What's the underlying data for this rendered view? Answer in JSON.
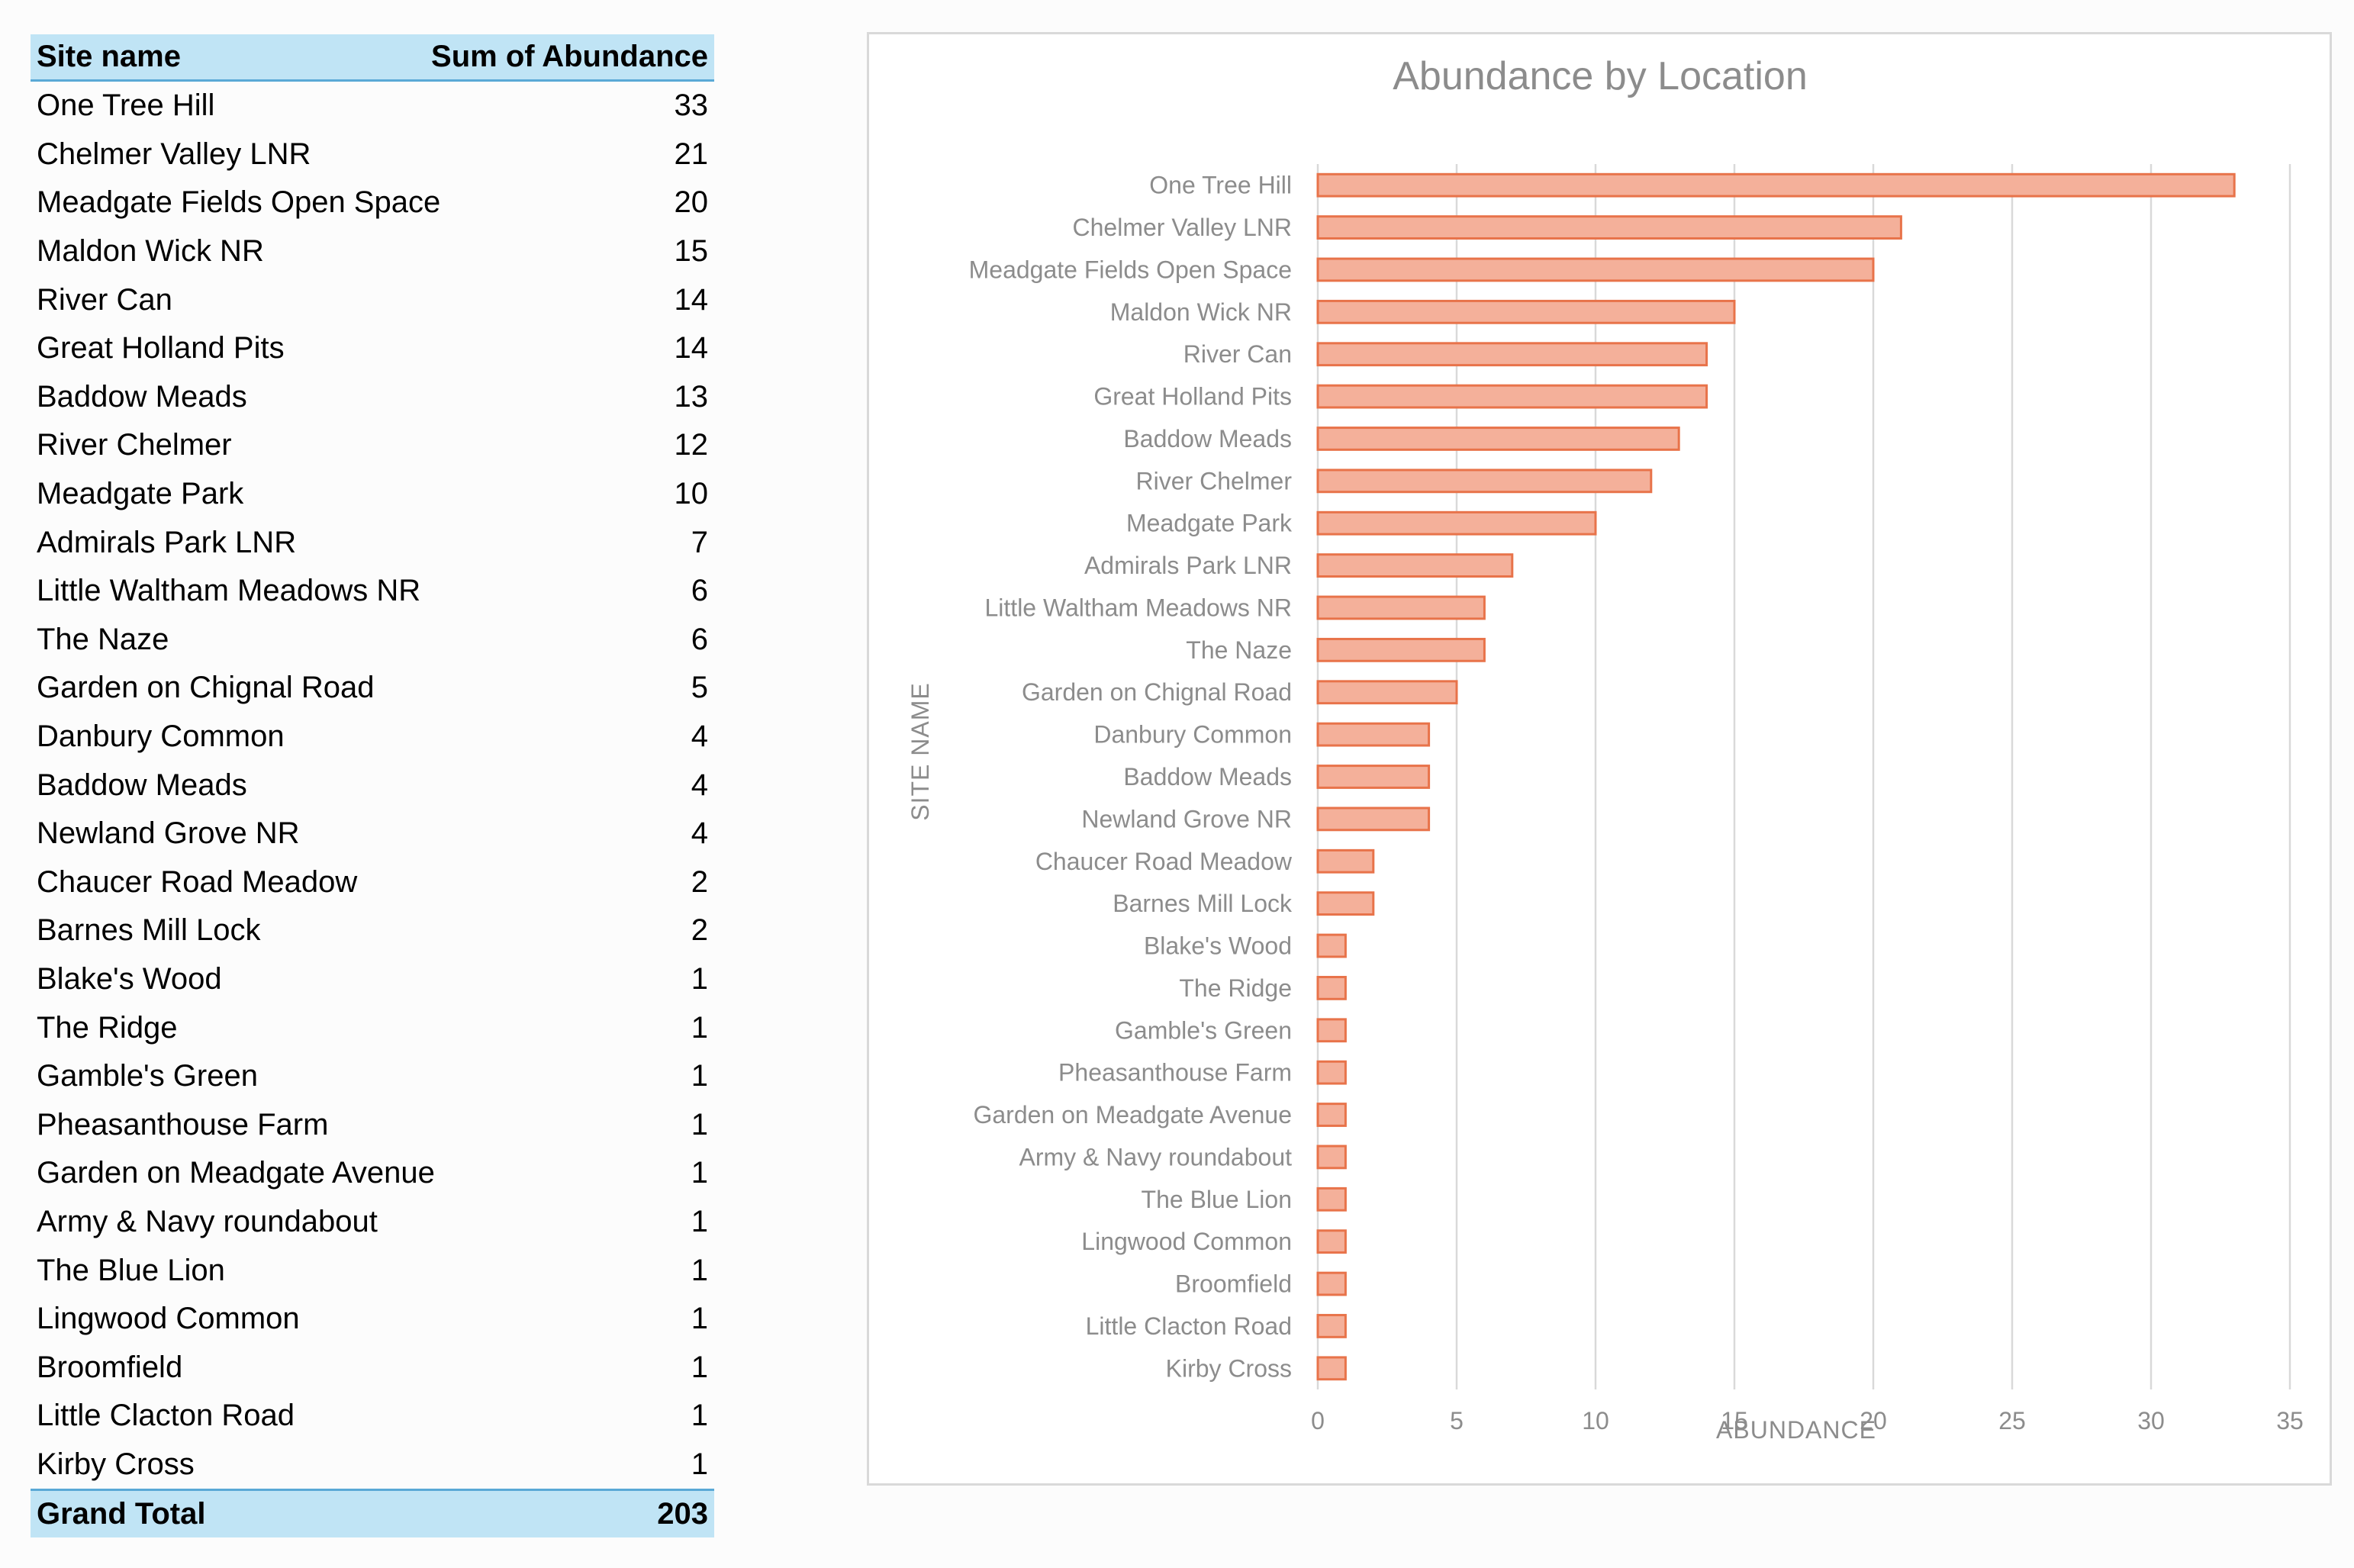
{
  "pivot": {
    "header": {
      "name": "Site name",
      "value": "Sum of Abundance"
    },
    "rows": [
      {
        "name": "One Tree Hill",
        "value": "33"
      },
      {
        "name": "Chelmer Valley LNR",
        "value": "21"
      },
      {
        "name": "Meadgate Fields Open Space",
        "value": "20"
      },
      {
        "name": "Maldon Wick NR",
        "value": "15"
      },
      {
        "name": "River Can",
        "value": "14"
      },
      {
        "name": "Great Holland Pits",
        "value": "14"
      },
      {
        "name": "Baddow Meads",
        "value": "13"
      },
      {
        "name": "River Chelmer",
        "value": "12"
      },
      {
        "name": "Meadgate Park",
        "value": "10"
      },
      {
        "name": "Admirals Park LNR",
        "value": "7"
      },
      {
        "name": "Little Waltham Meadows NR",
        "value": "6"
      },
      {
        "name": "The Naze",
        "value": "6"
      },
      {
        "name": "Garden on Chignal Road",
        "value": "5"
      },
      {
        "name": "Danbury Common",
        "value": "4"
      },
      {
        "name": "Baddow Meads",
        "value": "4"
      },
      {
        "name": "Newland Grove NR",
        "value": "4"
      },
      {
        "name": "Chaucer Road Meadow",
        "value": "2"
      },
      {
        "name": "Barnes Mill Lock",
        "value": "2"
      },
      {
        "name": "Blake's Wood",
        "value": "1"
      },
      {
        "name": "The Ridge",
        "value": "1"
      },
      {
        "name": "Gamble's Green",
        "value": "1"
      },
      {
        "name": "Pheasanthouse Farm",
        "value": "1"
      },
      {
        "name": "Garden on Meadgate Avenue",
        "value": "1"
      },
      {
        "name": "Army & Navy roundabout",
        "value": "1"
      },
      {
        "name": "The Blue Lion",
        "value": "1"
      },
      {
        "name": "Lingwood Common",
        "value": "1"
      },
      {
        "name": "Broomfield",
        "value": "1"
      },
      {
        "name": "Little Clacton Road",
        "value": "1"
      },
      {
        "name": "Kirby Cross",
        "value": "1"
      }
    ],
    "total": {
      "name": "Grand Total",
      "value": "203"
    }
  },
  "chart_data": {
    "type": "bar",
    "orientation": "horizontal",
    "title": "Abundance by Location",
    "xlabel": "ABUNDANCE",
    "ylabel": "SITE NAME",
    "xlim": [
      0,
      35
    ],
    "xticks": [
      0,
      5,
      10,
      15,
      20,
      25,
      30,
      35
    ],
    "grid": true,
    "categories": [
      "One Tree Hill",
      "Chelmer Valley LNR",
      "Meadgate Fields Open Space",
      "Maldon Wick NR",
      "River Can",
      "Great Holland Pits",
      "Baddow Meads",
      "River Chelmer",
      "Meadgate Park",
      "Admirals Park LNR",
      "Little Waltham Meadows NR",
      "The Naze",
      "Garden on Chignal Road",
      "Danbury Common",
      "Baddow Meads",
      "Newland Grove NR",
      "Chaucer Road Meadow",
      "Barnes Mill Lock",
      "Blake's Wood",
      "The Ridge",
      "Gamble's Green",
      "Pheasanthouse Farm",
      "Garden on Meadgate Avenue",
      "Army & Navy roundabout",
      "The Blue Lion",
      "Lingwood Common",
      "Broomfield",
      "Little Clacton Road",
      "Kirby Cross"
    ],
    "values": [
      33,
      21,
      20,
      15,
      14,
      14,
      13,
      12,
      10,
      7,
      6,
      6,
      5,
      4,
      4,
      4,
      2,
      2,
      1,
      1,
      1,
      1,
      1,
      1,
      1,
      1,
      1,
      1,
      1
    ],
    "colors": {
      "bar_fill": "#f4b09a",
      "bar_stroke": "#e8734a",
      "grid": "#d9d9d9",
      "text": "#8c8c8c"
    }
  }
}
